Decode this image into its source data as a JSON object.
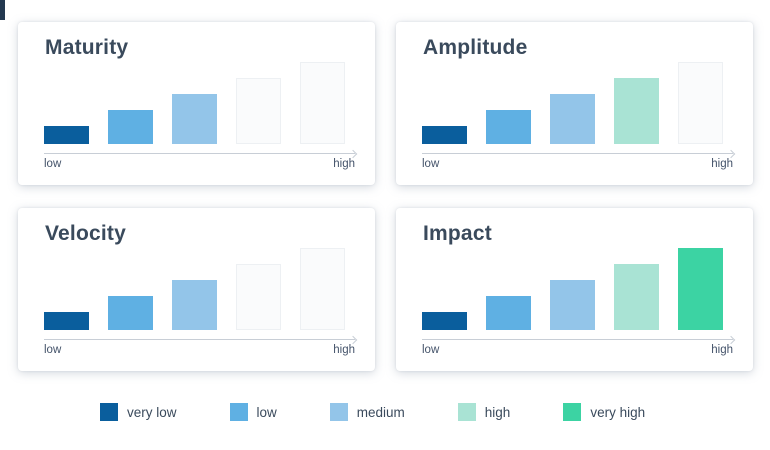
{
  "page": {
    "background": "#ffffff",
    "corner_sliver_color": "#233950"
  },
  "levels": [
    {
      "label": "very low",
      "color": "#0A5E9D"
    },
    {
      "label": "low",
      "color": "#5FB0E3"
    },
    {
      "label": "medium",
      "color": "#93C5E9"
    },
    {
      "label": "high",
      "color": "#A9E3D4"
    },
    {
      "label": "very high",
      "color": "#3CD3A3"
    }
  ],
  "palette": {
    "empty_fill": "#FAFBFC",
    "empty_border": "#EDF0F3",
    "axis_line": "#C8CED6",
    "title_text": "#3A4A5C",
    "label_text": "#44536A"
  },
  "chart_data": [
    {
      "type": "bar",
      "title": "Maturity",
      "categories": [
        "very low",
        "low",
        "medium",
        "high",
        "very high"
      ],
      "values": [
        1,
        2,
        3,
        4,
        5
      ],
      "filled": [
        true,
        true,
        true,
        false,
        false
      ],
      "rating": "medium",
      "filled_count": 3,
      "xlabel_left": "low",
      "xlabel_right": "high",
      "note": "five step bars of increasing height; unfilled steps drawn as faint placeholders"
    },
    {
      "type": "bar",
      "title": "Amplitude",
      "categories": [
        "very low",
        "low",
        "medium",
        "high",
        "very high"
      ],
      "values": [
        1,
        2,
        3,
        4,
        5
      ],
      "filled": [
        true,
        true,
        true,
        true,
        false
      ],
      "rating": "high",
      "filled_count": 4,
      "xlabel_left": "low",
      "xlabel_right": "high",
      "note": "five step bars of increasing height; unfilled steps drawn as faint placeholders"
    },
    {
      "type": "bar",
      "title": "Velocity",
      "categories": [
        "very low",
        "low",
        "medium",
        "high",
        "very high"
      ],
      "values": [
        1,
        2,
        3,
        4,
        5
      ],
      "filled": [
        true,
        true,
        true,
        false,
        false
      ],
      "rating": "medium",
      "filled_count": 3,
      "xlabel_left": "low",
      "xlabel_right": "high",
      "note": "five step bars of increasing height; unfilled steps drawn as faint placeholders"
    },
    {
      "type": "bar",
      "title": "Impact",
      "categories": [
        "very low",
        "low",
        "medium",
        "high",
        "very high"
      ],
      "values": [
        1,
        2,
        3,
        4,
        5
      ],
      "filled": [
        true,
        true,
        true,
        true,
        true
      ],
      "rating": "very high",
      "filled_count": 5,
      "xlabel_left": "low",
      "xlabel_right": "high",
      "note": "five step bars of increasing height; unfilled steps drawn as faint placeholders"
    }
  ],
  "legend": {
    "items": [
      {
        "label": "very low",
        "color": "#0A5E9D"
      },
      {
        "label": "low",
        "color": "#5FB0E3"
      },
      {
        "label": "medium",
        "color": "#93C5E9"
      },
      {
        "label": "high",
        "color": "#A9E3D4"
      },
      {
        "label": "very high",
        "color": "#3CD3A3"
      }
    ]
  }
}
